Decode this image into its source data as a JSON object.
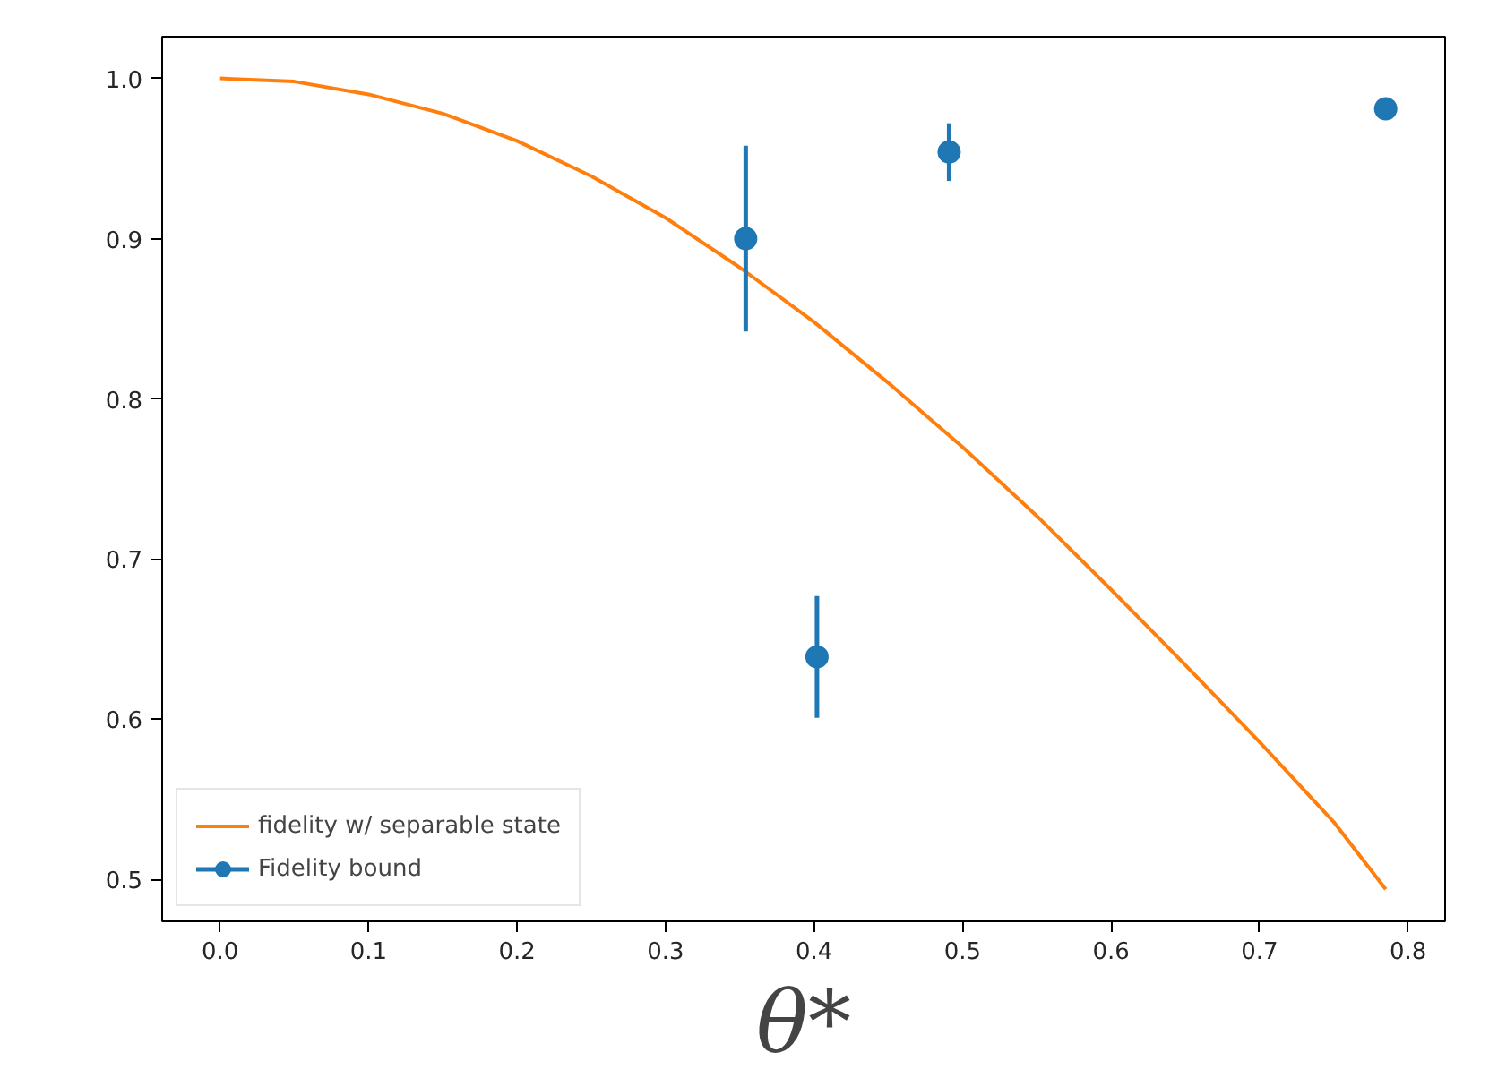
{
  "chart_data": {
    "type": "line",
    "xlabel": "θ*",
    "xlim": [
      -0.039,
      0.825
    ],
    "ylim": [
      0.474,
      1.026
    ],
    "xticks": [
      {
        "value": 0.0,
        "label": "0.0"
      },
      0.1,
      0.2,
      0.3,
      0.4,
      0.5,
      0.6,
      0.7,
      0.8
    ],
    "yticks": [
      0.5,
      0.6,
      0.7,
      0.8,
      0.9,
      {
        "value": 1.0,
        "label": "1.0"
      }
    ],
    "grid": false,
    "legend": "bottom left",
    "series": [
      {
        "name": "fidelity w/ separable state",
        "color": "#ff7f0e",
        "line_style": "solid",
        "marker": "none",
        "x": [
          0.0,
          0.05,
          0.1,
          0.15,
          0.2,
          0.25,
          0.3,
          0.35,
          0.4,
          0.45,
          0.5,
          0.55,
          0.6,
          0.65,
          0.7,
          0.75,
          0.785
        ],
        "values": [
          1.0,
          0.998,
          0.99,
          0.978,
          0.961,
          0.939,
          0.913,
          0.882,
          0.848,
          0.81,
          0.77,
          0.727,
          0.681,
          0.634,
          0.586,
          0.536,
          0.494
        ]
      },
      {
        "name": "Fidelity bound",
        "type": "scatter",
        "color": "#1f77b4",
        "marker": "circle",
        "x": [
          0.354,
          0.402,
          0.491,
          0.785
        ],
        "values": [
          0.9,
          0.639,
          0.954,
          0.981
        ],
        "errors": [
          0.058,
          0.038,
          0.018,
          null
        ]
      }
    ]
  }
}
